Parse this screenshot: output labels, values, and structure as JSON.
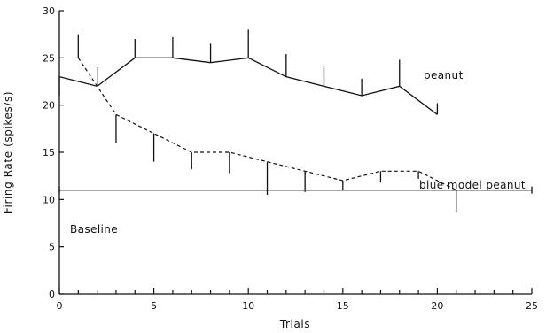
{
  "chart_data": {
    "type": "line",
    "xlabel": "Trials",
    "ylabel": "Firing Rate (spikes/s)",
    "xlim": [
      0,
      25
    ],
    "ylim": [
      0,
      30
    ],
    "x_ticks": [
      0,
      5,
      10,
      15,
      20,
      25
    ],
    "y_ticks": [
      0,
      5,
      10,
      15,
      20,
      25,
      30
    ],
    "grid": false,
    "series": [
      {
        "name": "peanut",
        "style": "solid",
        "error_bars": "upper",
        "x": [
          0,
          2,
          4,
          6,
          8,
          10,
          12,
          14,
          16,
          18,
          20
        ],
        "y": [
          23,
          22,
          25,
          25,
          24.5,
          25,
          23,
          22,
          21,
          22,
          19
        ],
        "error": [
          0,
          2,
          2,
          2.2,
          2,
          3,
          2.4,
          2.2,
          1.8,
          2.8,
          1.2
        ]
      },
      {
        "name": "blue model peanut",
        "style": "dashed",
        "error_bars": "lower",
        "x": [
          1,
          2,
          3,
          5,
          7,
          9,
          11,
          13,
          15,
          17,
          19,
          21
        ],
        "y": [
          25,
          22,
          19,
          17,
          15,
          15,
          14,
          13,
          12,
          13,
          13,
          11
        ],
        "error": [
          0,
          0,
          3,
          3,
          1.8,
          2.2,
          3.5,
          2.2,
          1,
          1.2,
          0.8,
          2.3
        ]
      },
      {
        "name": "Baseline",
        "style": "solid",
        "x": [
          0,
          25
        ],
        "y": [
          11,
          11
        ]
      }
    ],
    "peanut_start_error": {
      "x": 1,
      "y": 25,
      "upper": 2.5
    }
  }
}
